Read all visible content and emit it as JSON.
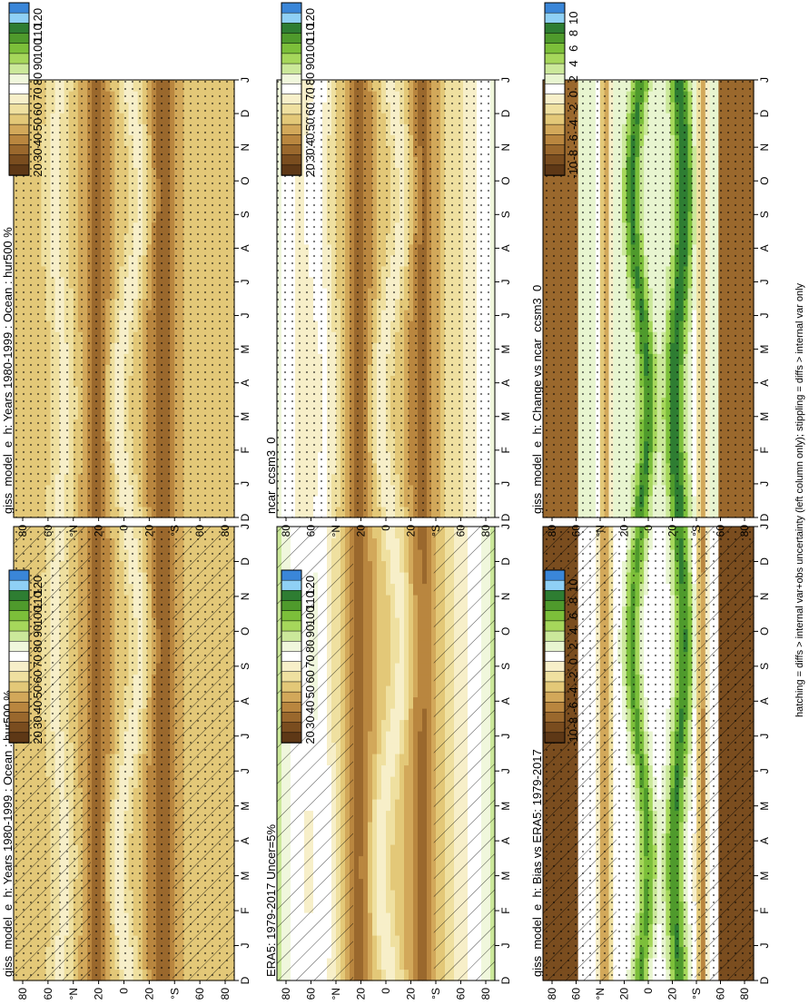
{
  "footnote": "hatching = diffs > internal var+obs uncertainty (left column only); stippling = diffs > internal var only",
  "month_labels": [
    "D",
    "J",
    "F",
    "M",
    "A",
    "M",
    "J",
    "J",
    "A",
    "S",
    "O",
    "N",
    "D",
    "J"
  ],
  "lat_labels": [
    "80",
    "60",
    "°N",
    "20",
    "0",
    "20",
    "°S",
    "60",
    "80"
  ],
  "colors": {
    "field_scale": [
      "#3a86d8",
      "#8fd0f5",
      "#2e7d32",
      "#4f9a2c",
      "#7cbf3a",
      "#a6d75b",
      "#cbe89a",
      "#f0f7dc",
      "#ffffff",
      "#f7efc9",
      "#efe0a0",
      "#e3c878",
      "#d2a85a",
      "#b9863f",
      "#9a682d",
      "#7a4d1f",
      "#5e3816"
    ],
    "diff_scale": [
      "#3a86d8",
      "#8fd0f5",
      "#2e7d32",
      "#4f9a2c",
      "#7cbf3a",
      "#a6d75b",
      "#cbe89a",
      "#e8f5d0",
      "#ffffff",
      "#f7efc9",
      "#efe0a0",
      "#e3c878",
      "#d2a85a",
      "#b9863f",
      "#9a682d",
      "#7a4d1f",
      "#5e3816"
    ]
  },
  "panels": [
    {
      "id": "model-left",
      "title": "giss_model_e_h: Years 1980-1999 : Ocean : hur500 %",
      "kind": "field",
      "hatch": true,
      "stipple": true
    },
    {
      "id": "ref-left",
      "title": "ERA5: 1979-2017 Uncer=5%",
      "kind": "ref",
      "hatch": true,
      "stipple": false
    },
    {
      "id": "bias-left",
      "title": "giss_model_e_h: Bias vs ERA5: 1979-2017",
      "kind": "diff",
      "hatch": true,
      "stipple": true
    },
    {
      "id": "model-right",
      "title": "giss_model_e_h: Years 1980-1999 : Ocean : hur500 %",
      "kind": "field",
      "hatch": false,
      "stipple": true
    },
    {
      "id": "ref-right",
      "title": "ncar_ccsm3_0",
      "kind": "ref2",
      "hatch": false,
      "stipple": true
    },
    {
      "id": "change-right",
      "title": "giss_model_e_h: Change vs ncar_ccsm3_0",
      "kind": "diff2",
      "hatch": false,
      "stipple": true
    }
  ],
  "colorbars": [
    {
      "id": "cb-model-left",
      "labels": [
        "120",
        "110",
        "100",
        "90",
        "80",
        "70",
        "60",
        "50",
        "40",
        "30",
        "20"
      ]
    },
    {
      "id": "cb-ref-left",
      "labels": [
        "120",
        "110",
        "100",
        "90",
        "80",
        "70",
        "60",
        "50",
        "40",
        "30",
        "20"
      ]
    },
    {
      "id": "cb-bias-left",
      "labels": [
        "10",
        "8",
        "6",
        "4",
        "2",
        "0",
        "-2",
        "-4",
        "-6",
        "-8",
        "-10"
      ]
    },
    {
      "id": "cb-model-right",
      "labels": [
        "120",
        "110",
        "100",
        "90",
        "80",
        "70",
        "60",
        "50",
        "40",
        "30",
        "20"
      ]
    },
    {
      "id": "cb-ref-right",
      "labels": [
        "120",
        "110",
        "100",
        "90",
        "80",
        "70",
        "60",
        "50",
        "40",
        "30",
        "20"
      ]
    },
    {
      "id": "cb-change-right",
      "labels": [
        "10",
        "8",
        "6",
        "4",
        "2",
        "0",
        "-2",
        "-4",
        "-6",
        "-8",
        "-10"
      ]
    }
  ],
  "chart_data": {
    "type": "heatmap",
    "x": [
      "D",
      "J",
      "F",
      "M",
      "A",
      "M",
      "J",
      "J",
      "A",
      "S",
      "O",
      "N",
      "D",
      "J"
    ],
    "y": [
      "80",
      "60",
      "°N",
      "20",
      "0",
      "20",
      "°S",
      "60",
      "80"
    ],
    "grid": false
  }
}
